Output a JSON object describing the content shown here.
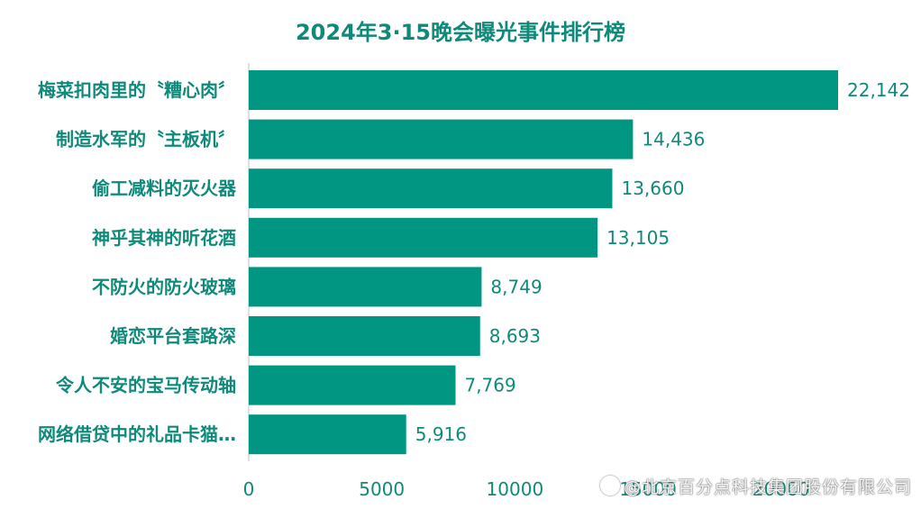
{
  "chart_data": {
    "type": "bar",
    "orientation": "horizontal",
    "title": "2024年3·15晚会曝光事件排行榜",
    "categories": [
      "梅菜扣肉里的〝糟心肉〞",
      "制造水军的〝主板机〞",
      "偷工减料的灭火器",
      "神乎其神的听花酒",
      "不防火的防火玻璃",
      "婚恋平台套路深",
      "令人不安的宝马传动轴",
      "网络借贷中的礼品卡猫…"
    ],
    "values": [
      22142,
      14436,
      13660,
      13105,
      8749,
      8693,
      7769,
      5916
    ],
    "value_labels": [
      "22,142",
      "14,436",
      "13,660",
      "13,105",
      "8,749",
      "8,693",
      "7,769",
      "5,916"
    ],
    "xlim": [
      0,
      25000
    ],
    "xticks": [
      0,
      5000,
      10000,
      15000,
      20000
    ],
    "grid": false,
    "legend": "none",
    "bar_color": "#009682",
    "label_color": "#0f8a7a"
  },
  "watermark": {
    "text": "@北京百分点科技集团股份有限公司"
  }
}
